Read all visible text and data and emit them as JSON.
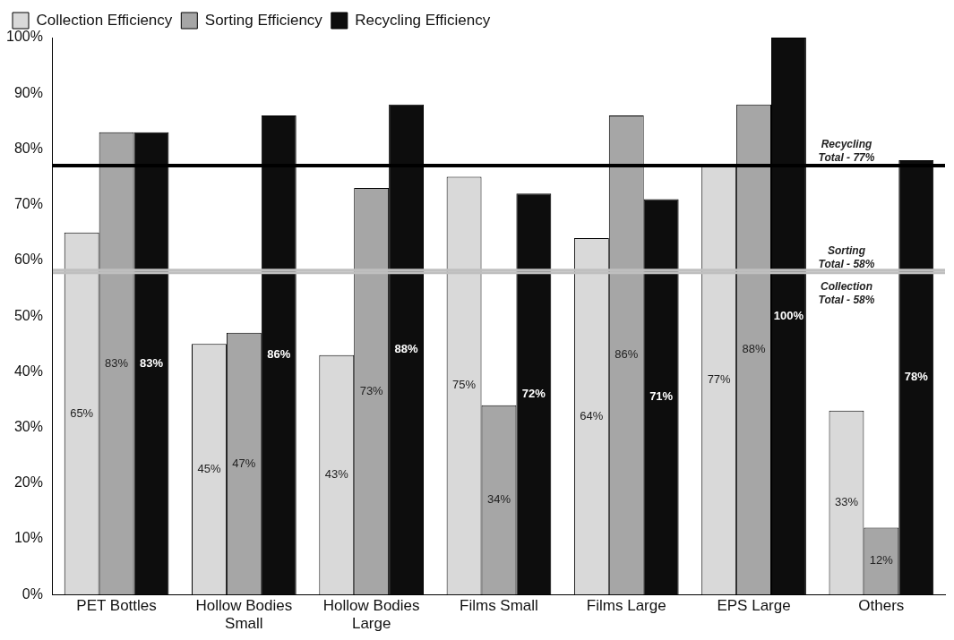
{
  "chart_data": {
    "type": "bar",
    "categories": [
      "PET Bottles",
      "Hollow Bodies Small",
      "Hollow Bodies Large",
      "Films Small",
      "Films Large",
      "EPS Large",
      "Others"
    ],
    "series": [
      {
        "name": "Collection Efficiency",
        "color": "#d9d9d9",
        "values": [
          65,
          45,
          43,
          75,
          64,
          77,
          33
        ],
        "value_labels": [
          "65%",
          "45%",
          "43%",
          "75%",
          "64%",
          "77%",
          "33%"
        ]
      },
      {
        "name": "Sorting Efficiency",
        "color": "#a6a6a6",
        "values": [
          83,
          47,
          73,
          34,
          86,
          88,
          12
        ],
        "value_labels": [
          "83%",
          "47%",
          "73%",
          "34%",
          "86%",
          "88%",
          "12%"
        ]
      },
      {
        "name": "Recycling Efficiency",
        "color": "#0d0d0d",
        "values": [
          83,
          86,
          88,
          72,
          71,
          100,
          78
        ],
        "value_labels": [
          "83%",
          "86%",
          "88%",
          "72%",
          "71%",
          "100%",
          "78%"
        ]
      }
    ],
    "ylim": [
      0,
      100
    ],
    "yticks": [
      {
        "value": 0,
        "label": "0%"
      },
      {
        "value": 10,
        "label": "10%"
      },
      {
        "value": 20,
        "label": "20%"
      },
      {
        "value": 30,
        "label": "30%"
      },
      {
        "value": 40,
        "label": "40%"
      },
      {
        "value": 50,
        "label": "50%"
      },
      {
        "value": 60,
        "label": "60%"
      },
      {
        "value": 70,
        "label": "70%"
      },
      {
        "value": 80,
        "label": "80%"
      },
      {
        "value": 90,
        "label": "90%"
      },
      {
        "value": 100,
        "label": "100%"
      }
    ],
    "ref_lines": [
      {
        "axis": "y",
        "value": 77,
        "label": "Recycling Total - 77%",
        "color": "#000000"
      },
      {
        "axis": "y",
        "value": 58,
        "label": "Sorting Total - 58%",
        "color": "#bfbfbf"
      },
      {
        "axis": "y",
        "value": 58,
        "label": "Collection Total - 58%",
        "color": "#bfbfbf"
      }
    ],
    "legend": "top left",
    "grid": false
  }
}
